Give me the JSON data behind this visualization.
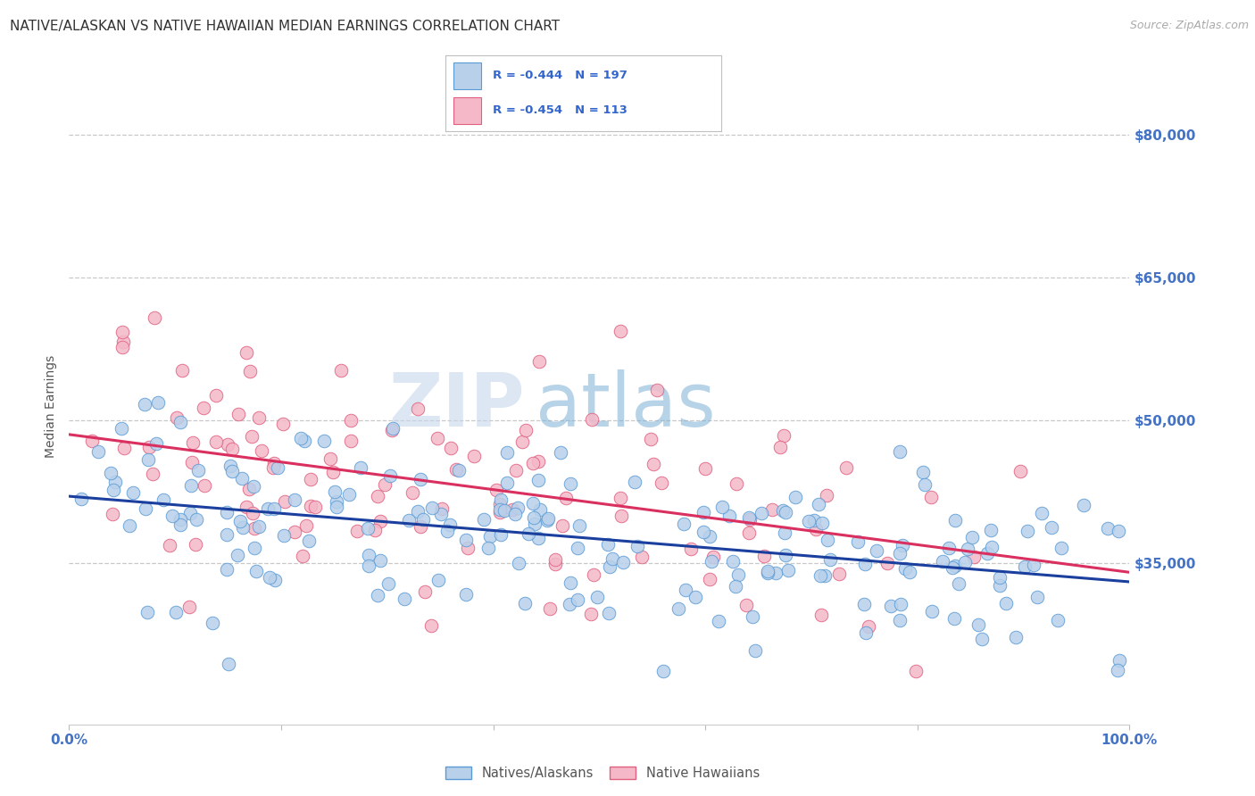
{
  "title": "NATIVE/ALASKAN VS NATIVE HAWAIIAN MEDIAN EARNINGS CORRELATION CHART",
  "source": "Source: ZipAtlas.com",
  "ylabel": "Median Earnings",
  "watermark_zip": "ZIP",
  "watermark_atlas": "atlas",
  "series": [
    {
      "name": "Natives/Alaskans",
      "R": -0.444,
      "N": 197,
      "color": "#b8d0ea",
      "edge_color": "#5b9bd5",
      "line_color": "#1a3f9e"
    },
    {
      "name": "Native Hawaiians",
      "R": -0.454,
      "N": 113,
      "color": "#f4b8c8",
      "edge_color": "#e06080",
      "line_color": "#d93060"
    }
  ],
  "yticks": [
    35000,
    50000,
    65000,
    80000
  ],
  "ytick_labels": [
    "$35,000",
    "$50,000",
    "$65,000",
    "$80,000"
  ],
  "ylim": [
    18000,
    85000
  ],
  "xlim": [
    0.0,
    1.0
  ],
  "title_color": "#333333",
  "axis_color": "#4472c4",
  "grid_color": "#c8c8c8",
  "background_color": "#ffffff",
  "title_fontsize": 11,
  "tick_fontsize": 11,
  "ylabel_fontsize": 10,
  "source_fontsize": 9,
  "legend_color": "#3366cc",
  "legend_R_label": "R = ",
  "legend_N_label": "N = "
}
